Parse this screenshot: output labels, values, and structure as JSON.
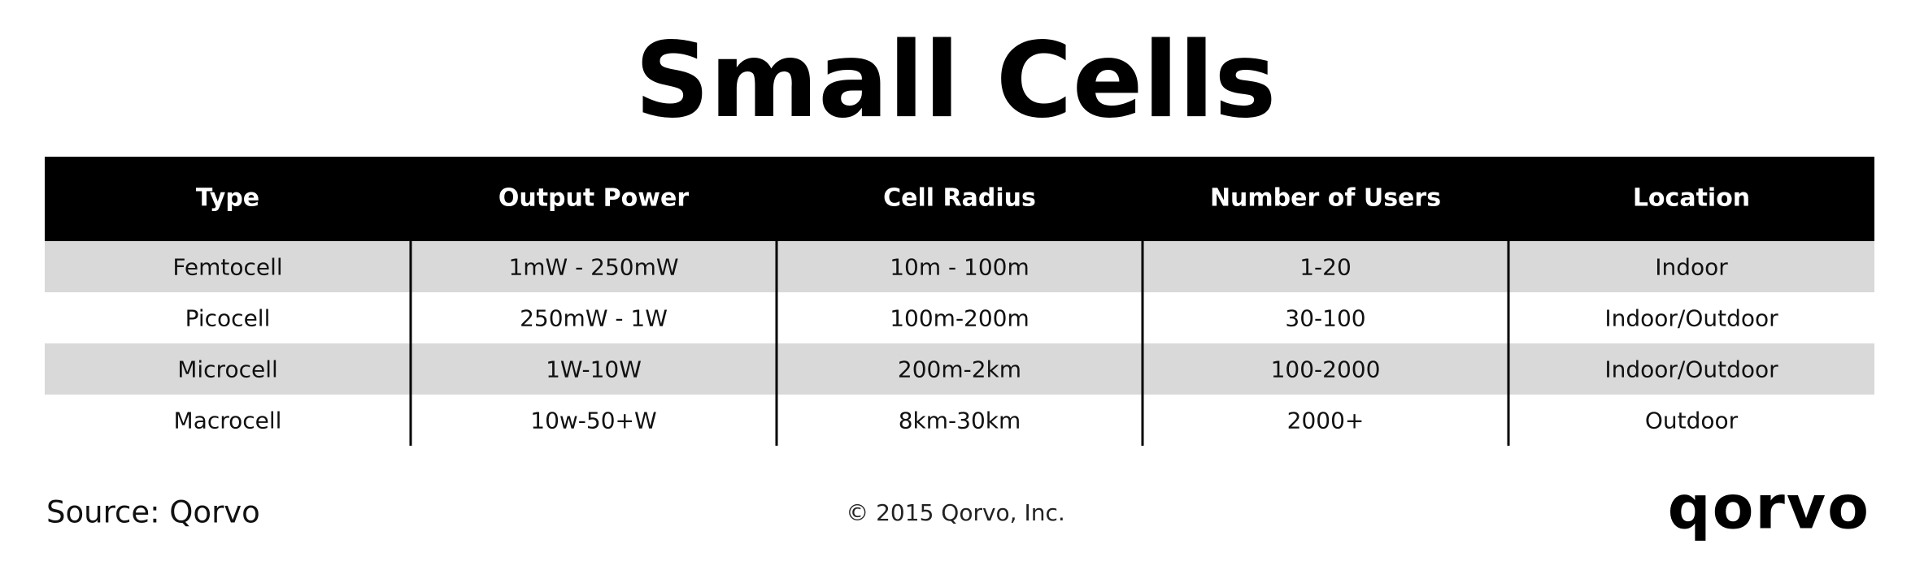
{
  "header": {
    "title": "Small Cells"
  },
  "table": {
    "columns": [
      "Type",
      "Output Power",
      "Cell Radius",
      "Number of Users",
      "Location"
    ],
    "rows": [
      [
        "Femtocell",
        "1mW - 250mW",
        "10m - 100m",
        "1-20",
        "Indoor"
      ],
      [
        "Picocell",
        "250mW - 1W",
        "100m-200m",
        "30-100",
        "Indoor/Outdoor"
      ],
      [
        "Microcell",
        "1W-10W",
        "200m-2km",
        "100-2000",
        "Indoor/Outdoor"
      ],
      [
        "Macrocell",
        "10w-50+W",
        "8km-30km",
        "2000+",
        "Outdoor"
      ]
    ]
  },
  "footer": {
    "source": "Source: Qorvo",
    "copyright": "© 2015 Qorvo, Inc.",
    "logo": "qorvo"
  }
}
